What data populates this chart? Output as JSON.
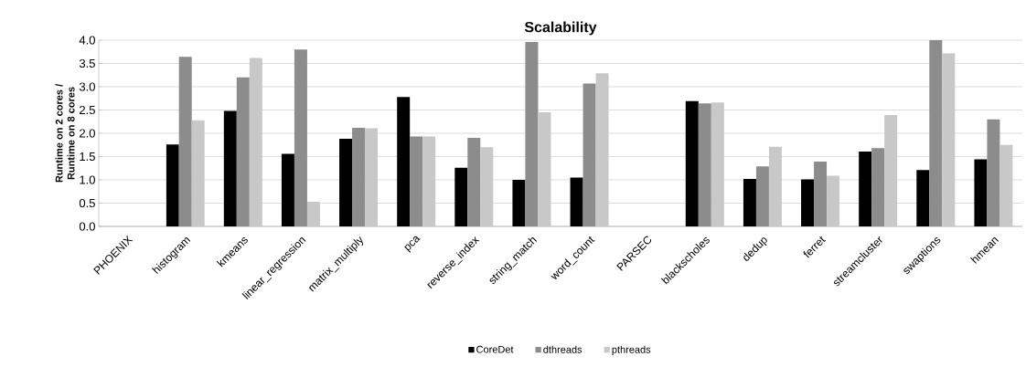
{
  "chart_data": {
    "type": "bar",
    "title": "Scalability",
    "ylabel": "Runtime on 2 cores / Runtime on 8 cores",
    "categories": [
      "PHOENIX",
      "histogram",
      "kmeans",
      "linear_regression",
      "matrix_multiply",
      "pca",
      "reverse_index",
      "string_match",
      "word_count",
      "PARSEC",
      "blackscholes",
      "dedup",
      "ferret",
      "streamcluster",
      "swaptions",
      "hmean"
    ],
    "series": [
      {
        "name": "CoreDet",
        "color": "#000000",
        "values": [
          null,
          1.76,
          2.48,
          1.56,
          1.88,
          2.78,
          1.26,
          1.0,
          1.05,
          null,
          2.69,
          1.02,
          1.01,
          1.61,
          1.21,
          1.44
        ]
      },
      {
        "name": "dthreads",
        "color": "#8c8c8c",
        "values": [
          null,
          3.64,
          3.2,
          3.8,
          2.12,
          1.93,
          1.9,
          3.96,
          3.07,
          null,
          2.64,
          1.29,
          1.39,
          1.68,
          4.0,
          2.3
        ]
      },
      {
        "name": "pthreads",
        "color": "#c8c8c8",
        "values": [
          null,
          2.28,
          3.62,
          0.53,
          2.11,
          1.93,
          1.7,
          2.45,
          3.29,
          null,
          2.66,
          1.71,
          1.09,
          2.39,
          3.72,
          1.75
        ]
      }
    ],
    "ylim": [
      0,
      4
    ],
    "yticks": [
      {
        "value": 0,
        "label": "0.0"
      },
      {
        "value": 0.5,
        "label": "0.5"
      },
      {
        "value": 1,
        "label": "1.0"
      },
      {
        "value": 1.5,
        "label": "1.5"
      },
      {
        "value": 2,
        "label": "2.0"
      },
      {
        "value": 2.5,
        "label": "2.5"
      },
      {
        "value": 3,
        "label": "3.0"
      },
      {
        "value": 3.5,
        "label": "3.5"
      },
      {
        "value": 4,
        "label": "4.0"
      }
    ],
    "grid": "y",
    "legend": "bottom"
  }
}
